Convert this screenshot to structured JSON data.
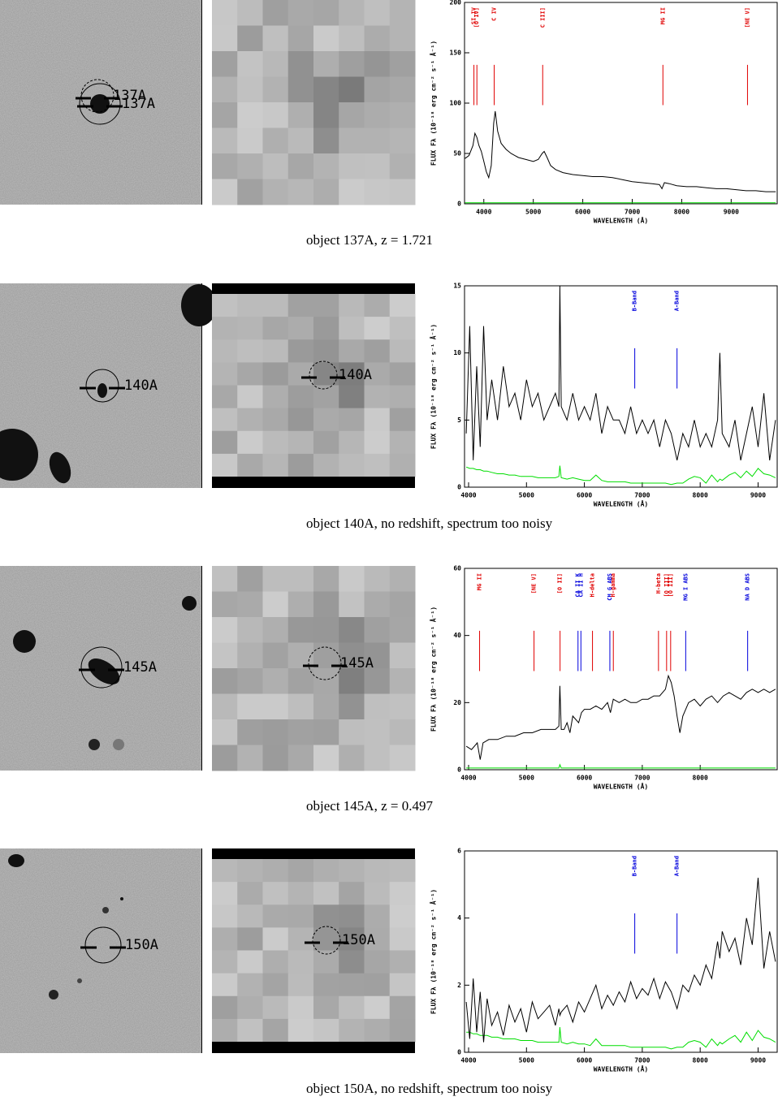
{
  "panels": [
    {
      "label": "137A",
      "caption": "object 137A, z = 1.721"
    },
    {
      "label": "140A",
      "caption": "object 140A, no redshift, spectrum too noisy"
    },
    {
      "label": "145A",
      "caption": "object 145A, z = 0.497"
    },
    {
      "label": "150A",
      "caption": "object 150A, no redshift, spectrum too noisy"
    }
  ],
  "chart_data": [
    {
      "type": "line",
      "xlabel": "WAVELENGTH (Å)",
      "ylabel": "FLUX Fλ (10⁻¹⁸ erg cm⁻² s⁻¹ Å⁻¹)",
      "xlim": [
        3610,
        9930
      ],
      "ylim": [
        0,
        200
      ],
      "xticks": [
        4000,
        5000,
        6000,
        7000,
        8000,
        9000
      ],
      "yticks": [
        0,
        50,
        100,
        150,
        200
      ],
      "x": [
        3620,
        3700,
        3780,
        3820,
        3860,
        3900,
        3950,
        4000,
        4050,
        4100,
        4150,
        4200,
        4230,
        4280,
        4350,
        4450,
        4550,
        4700,
        4850,
        5000,
        5100,
        5180,
        5220,
        5280,
        5350,
        5450,
        5600,
        5800,
        6000,
        6200,
        6400,
        6600,
        6800,
        7000,
        7200,
        7400,
        7550,
        7600,
        7650,
        7750,
        7900,
        8100,
        8300,
        8500,
        8700,
        8900,
        9100,
        9300,
        9500,
        9700,
        9900
      ],
      "series": [
        {
          "color": "#000000",
          "values": [
            45,
            48,
            58,
            70,
            66,
            58,
            52,
            42,
            32,
            26,
            38,
            80,
            92,
            72,
            60,
            54,
            50,
            46,
            44,
            42,
            44,
            50,
            52,
            46,
            38,
            34,
            31,
            29,
            28,
            27,
            27,
            26,
            24,
            22,
            21,
            20,
            19,
            15,
            21,
            20,
            18,
            17,
            17,
            16,
            15,
            15,
            14,
            13,
            13,
            12,
            12
          ]
        },
        {
          "color": "#00dd00",
          "values": [
            1,
            1,
            1,
            1,
            1,
            1,
            1,
            1,
            1,
            1,
            1,
            1,
            1,
            1,
            1,
            1,
            1,
            1,
            1,
            1,
            1,
            1,
            1,
            1,
            1,
            1,
            1,
            1,
            1,
            1,
            1,
            1,
            1,
            1,
            1,
            1,
            1,
            1,
            1,
            1,
            1,
            1,
            1,
            1,
            1,
            1,
            1,
            1,
            1,
            1,
            1
          ]
        }
      ],
      "lines": [
        {
          "label": "SI IV",
          "x": 3800,
          "color": "#e00000"
        },
        {
          "label": "[O IV]",
          "x": 3860,
          "color": "#e00000"
        },
        {
          "label": "C IV",
          "x": 4210,
          "color": "#e00000"
        },
        {
          "label": "C III]",
          "x": 5190,
          "color": "#e00000"
        },
        {
          "label": "MG II",
          "x": 7620,
          "color": "#e00000"
        },
        {
          "label": "[NE V]",
          "x": 9330,
          "color": "#e00000"
        }
      ]
    },
    {
      "type": "line",
      "xlabel": "WAVELENGTH (Å)",
      "ylabel": "FLUX Fλ (10⁻¹⁸ erg cm⁻² s⁻¹ Å⁻¹)",
      "xlim": [
        3930,
        9330
      ],
      "ylim": [
        0,
        15
      ],
      "xticks": [
        4000,
        5000,
        6000,
        7000,
        8000,
        9000
      ],
      "yticks": [
        0,
        5,
        10,
        15
      ],
      "x": [
        3960,
        4020,
        4080,
        4140,
        4200,
        4260,
        4320,
        4400,
        4500,
        4600,
        4700,
        4800,
        4900,
        5000,
        5100,
        5200,
        5300,
        5400,
        5500,
        5560,
        5577,
        5600,
        5700,
        5800,
        5900,
        6000,
        6100,
        6200,
        6300,
        6400,
        6500,
        6600,
        6700,
        6800,
        6900,
        7000,
        7100,
        7200,
        7300,
        7400,
        7500,
        7600,
        7700,
        7800,
        7900,
        8000,
        8100,
        8200,
        8300,
        8340,
        8380,
        8500,
        8600,
        8700,
        8800,
        8900,
        9000,
        9100,
        9200,
        9300
      ],
      "series": [
        {
          "color": "#000000",
          "values": [
            4,
            12,
            2,
            9,
            3,
            12,
            5,
            8,
            5,
            9,
            6,
            7,
            5,
            8,
            6,
            7,
            5,
            6,
            7,
            6,
            15,
            6,
            5,
            7,
            5,
            6,
            5,
            7,
            4,
            6,
            5,
            5,
            4,
            6,
            4,
            5,
            4,
            5,
            3,
            5,
            4,
            2,
            4,
            3,
            5,
            3,
            4,
            3,
            5,
            10,
            4,
            3,
            5,
            2,
            4,
            6,
            3,
            7,
            2,
            5
          ]
        },
        {
          "color": "#00dd00",
          "values": [
            1.5,
            1.4,
            1.4,
            1.3,
            1.3,
            1.2,
            1.2,
            1.1,
            1.0,
            1.0,
            0.9,
            0.9,
            0.8,
            0.8,
            0.8,
            0.7,
            0.7,
            0.7,
            0.7,
            0.8,
            1.6,
            0.7,
            0.6,
            0.7,
            0.6,
            0.5,
            0.5,
            0.9,
            0.5,
            0.4,
            0.4,
            0.4,
            0.4,
            0.3,
            0.3,
            0.3,
            0.3,
            0.3,
            0.3,
            0.3,
            0.2,
            0.3,
            0.3,
            0.6,
            0.8,
            0.7,
            0.3,
            0.9,
            0.4,
            0.6,
            0.5,
            0.9,
            1.1,
            0.7,
            1.2,
            0.8,
            1.4,
            1.0,
            0.9,
            0.7
          ]
        }
      ],
      "lines": [
        {
          "label": "B-Band",
          "x": 6870,
          "color": "#0000dd"
        },
        {
          "label": "A-Band",
          "x": 7600,
          "color": "#0000dd"
        }
      ]
    },
    {
      "type": "line",
      "xlabel": "WAVELENGTH (Å)",
      "ylabel": "FLUX Fλ (10⁻¹⁸ erg cm⁻² s⁻¹ Å⁻¹)",
      "xlim": [
        3930,
        9330
      ],
      "ylim": [
        0,
        60
      ],
      "xticks": [
        4000,
        5000,
        6000,
        7000,
        8000
      ],
      "yticks": [
        0,
        20,
        40,
        60
      ],
      "x": [
        3960,
        4050,
        4150,
        4200,
        4250,
        4350,
        4500,
        4650,
        4800,
        4950,
        5100,
        5250,
        5400,
        5500,
        5560,
        5577,
        5600,
        5650,
        5700,
        5750,
        5800,
        5850,
        5900,
        5950,
        6000,
        6100,
        6200,
        6300,
        6400,
        6450,
        6500,
        6600,
        6700,
        6800,
        6900,
        7000,
        7100,
        7200,
        7300,
        7400,
        7450,
        7500,
        7550,
        7600,
        7650,
        7700,
        7800,
        7900,
        8000,
        8100,
        8200,
        8300,
        8400,
        8500,
        8600,
        8700,
        8800,
        8900,
        9000,
        9100,
        9200,
        9300
      ],
      "series": [
        {
          "color": "#000000",
          "values": [
            7,
            6,
            8,
            3,
            8,
            9,
            9,
            10,
            10,
            11,
            11,
            12,
            12,
            12,
            13,
            25,
            12,
            12,
            14,
            11,
            16,
            15,
            14,
            17,
            18,
            18,
            19,
            18,
            20,
            17,
            21,
            20,
            21,
            20,
            20,
            21,
            21,
            22,
            22,
            24,
            28,
            26,
            22,
            16,
            11,
            16,
            20,
            21,
            19,
            21,
            22,
            20,
            22,
            23,
            22,
            21,
            23,
            24,
            23,
            24,
            23,
            24
          ]
        },
        {
          "color": "#00dd00",
          "values": [
            0.5,
            0.5,
            0.5,
            0.5,
            0.5,
            0.5,
            0.5,
            0.5,
            0.5,
            0.5,
            0.5,
            0.5,
            0.5,
            0.5,
            0.5,
            1.5,
            0.5,
            0.5,
            0.5,
            0.5,
            0.5,
            0.5,
            0.5,
            0.5,
            0.5,
            0.5,
            0.5,
            0.5,
            0.5,
            0.5,
            0.5,
            0.5,
            0.5,
            0.5,
            0.5,
            0.5,
            0.5,
            0.5,
            0.5,
            0.5,
            0.5,
            0.5,
            0.5,
            0.5,
            0.5,
            0.5,
            0.5,
            0.5,
            0.5,
            0.5,
            0.5,
            0.5,
            0.5,
            0.5,
            0.5,
            0.5,
            0.5,
            0.5,
            0.5,
            0.5,
            0.5,
            0.5
          ]
        }
      ],
      "lines": [
        {
          "label": "MG II",
          "x": 4190,
          "color": "#e00000"
        },
        {
          "label": "[NE V]",
          "x": 5130,
          "color": "#e00000"
        },
        {
          "label": "[O II]",
          "x": 5580,
          "color": "#e00000"
        },
        {
          "label": "CA II K",
          "x": 5890,
          "color": "#0000dd"
        },
        {
          "label": "CA II H",
          "x": 5940,
          "color": "#0000dd"
        },
        {
          "label": "H-delta",
          "x": 6140,
          "color": "#e00000"
        },
        {
          "label": "CH G ABS",
          "x": 6440,
          "color": "#0000dd"
        },
        {
          "label": "H-gamma",
          "x": 6500,
          "color": "#e00000"
        },
        {
          "label": "H-beta",
          "x": 7280,
          "color": "#e00000"
        },
        {
          "label": "[O III]",
          "x": 7420,
          "color": "#e00000"
        },
        {
          "label": "[O III]",
          "x": 7490,
          "color": "#e00000"
        },
        {
          "label": "MG I ABS",
          "x": 7750,
          "color": "#0000dd"
        },
        {
          "label": "NA D ABS",
          "x": 8820,
          "color": "#0000dd"
        }
      ]
    },
    {
      "type": "line",
      "xlabel": "WAVELENGTH (Å)",
      "ylabel": "FLUX Fλ (10⁻¹⁸ erg cm⁻² s⁻¹ Å⁻¹)",
      "xlim": [
        3930,
        9330
      ],
      "ylim": [
        0,
        6
      ],
      "xticks": [
        4000,
        5000,
        6000,
        7000,
        8000,
        9000
      ],
      "yticks": [
        0,
        2,
        4,
        6
      ],
      "x": [
        3960,
        4020,
        4080,
        4140,
        4200,
        4260,
        4320,
        4400,
        4500,
        4600,
        4700,
        4800,
        4900,
        5000,
        5100,
        5200,
        5300,
        5400,
        5500,
        5560,
        5577,
        5600,
        5700,
        5800,
        5900,
        6000,
        6100,
        6200,
        6300,
        6400,
        6500,
        6600,
        6700,
        6800,
        6900,
        7000,
        7100,
        7200,
        7300,
        7400,
        7500,
        7600,
        7700,
        7800,
        7900,
        8000,
        8100,
        8200,
        8300,
        8340,
        8380,
        8500,
        8600,
        8700,
        8800,
        8900,
        9000,
        9100,
        9200,
        9300
      ],
      "series": [
        {
          "color": "#000000",
          "values": [
            1.5,
            0.4,
            2.2,
            0.6,
            1.8,
            0.3,
            1.6,
            0.8,
            1.2,
            0.5,
            1.4,
            0.9,
            1.3,
            0.6,
            1.5,
            1.0,
            1.2,
            1.4,
            0.8,
            1.3,
            1.1,
            1.2,
            1.4,
            0.9,
            1.5,
            1.2,
            1.6,
            2.0,
            1.3,
            1.7,
            1.4,
            1.8,
            1.5,
            2.1,
            1.6,
            1.9,
            1.7,
            2.2,
            1.6,
            2.1,
            1.8,
            1.3,
            2.0,
            1.8,
            2.3,
            2.0,
            2.6,
            2.2,
            3.3,
            2.8,
            3.6,
            3.0,
            3.4,
            2.6,
            4.0,
            3.2,
            5.2,
            2.5,
            3.6,
            2.7
          ]
        },
        {
          "color": "#00dd00",
          "values": [
            0.6,
            0.6,
            0.55,
            0.55,
            0.5,
            0.5,
            0.5,
            0.45,
            0.45,
            0.4,
            0.4,
            0.4,
            0.35,
            0.35,
            0.35,
            0.3,
            0.3,
            0.3,
            0.3,
            0.3,
            0.75,
            0.3,
            0.25,
            0.3,
            0.25,
            0.25,
            0.2,
            0.4,
            0.2,
            0.2,
            0.2,
            0.2,
            0.2,
            0.15,
            0.15,
            0.15,
            0.15,
            0.15,
            0.15,
            0.15,
            0.1,
            0.15,
            0.15,
            0.3,
            0.35,
            0.3,
            0.15,
            0.4,
            0.2,
            0.3,
            0.25,
            0.4,
            0.5,
            0.3,
            0.6,
            0.35,
            0.65,
            0.45,
            0.4,
            0.3
          ]
        }
      ],
      "lines": [
        {
          "label": "B-Band",
          "x": 6870,
          "color": "#0000dd"
        },
        {
          "label": "A-Band",
          "x": 7600,
          "color": "#0000dd"
        }
      ]
    }
  ]
}
